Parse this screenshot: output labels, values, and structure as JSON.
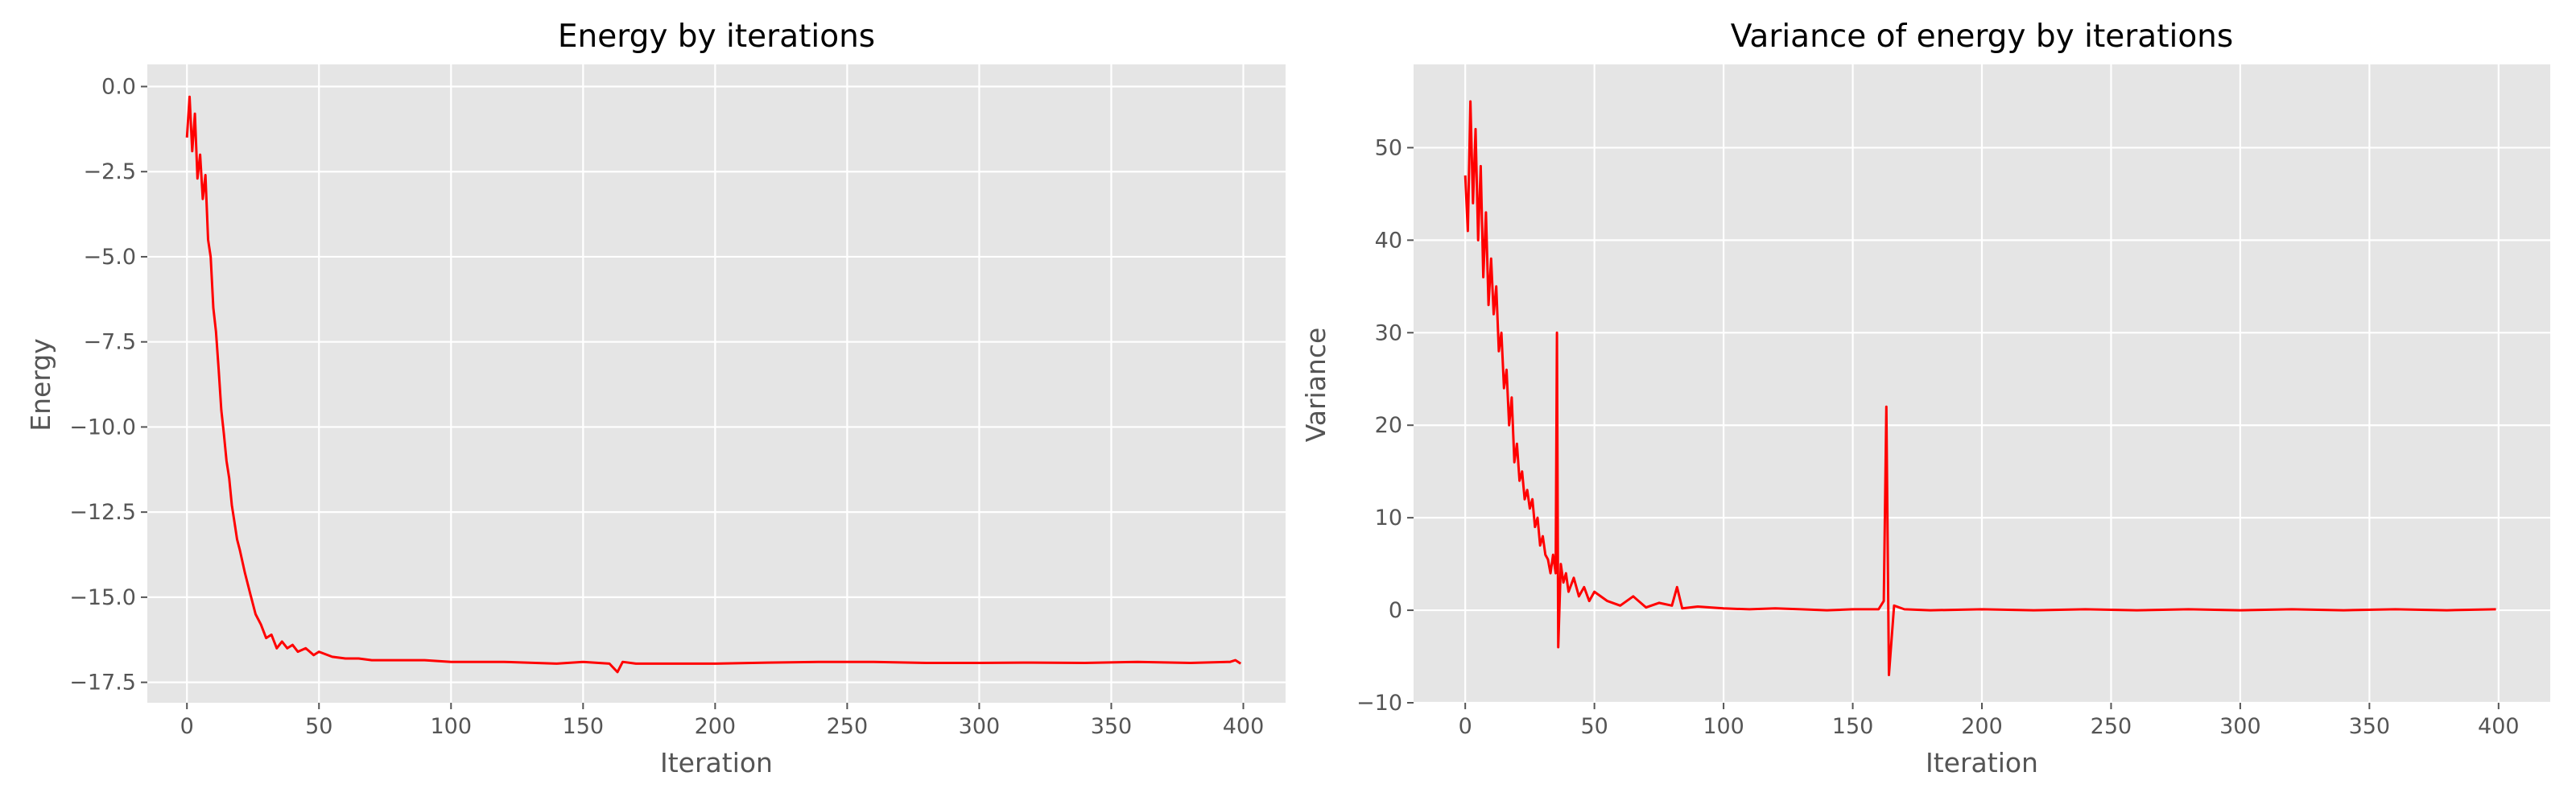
{
  "chart_data": [
    {
      "type": "line",
      "title": "Energy by iterations",
      "xlabel": "Iteration",
      "ylabel": "Energy",
      "xlim": [
        -15,
        416
      ],
      "ylim": [
        -18.1,
        0.65
      ],
      "xticks": [
        0,
        50,
        100,
        150,
        200,
        250,
        300,
        350,
        400
      ],
      "xtick_labels": [
        "0",
        "50",
        "100",
        "150",
        "200",
        "250",
        "300",
        "350",
        "400"
      ],
      "yticks": [
        0.0,
        -2.5,
        -5.0,
        -7.5,
        -10.0,
        -12.5,
        -15.0,
        -17.5
      ],
      "ytick_labels": [
        "0.0",
        "−2.5",
        "−5.0",
        "−7.5",
        "−10.0",
        "−12.5",
        "−15.0",
        "−17.5"
      ],
      "grid": true,
      "line_color": "#ff0000",
      "background": "#e5e5e5",
      "series": [
        {
          "x": [
            0,
            1,
            2,
            3,
            4,
            5,
            6,
            7,
            8,
            9,
            10,
            11,
            12,
            13,
            14,
            15,
            16,
            17,
            18,
            19,
            20,
            22,
            24,
            26,
            28,
            30,
            32,
            34,
            36,
            38,
            40,
            42,
            45,
            48,
            50,
            55,
            60,
            65,
            70,
            80,
            90,
            100,
            120,
            140,
            150,
            160,
            163,
            165,
            170,
            180,
            200,
            220,
            240,
            260,
            280,
            300,
            320,
            340,
            360,
            380,
            395,
            397,
            399
          ],
          "y": [
            -1.5,
            -0.3,
            -1.9,
            -0.8,
            -2.7,
            -2.0,
            -3.3,
            -2.6,
            -4.5,
            -5.0,
            -6.5,
            -7.2,
            -8.3,
            -9.5,
            -10.2,
            -11.0,
            -11.5,
            -12.3,
            -12.8,
            -13.3,
            -13.6,
            -14.3,
            -14.9,
            -15.5,
            -15.8,
            -16.2,
            -16.1,
            -16.5,
            -16.3,
            -16.5,
            -16.4,
            -16.6,
            -16.5,
            -16.7,
            -16.6,
            -16.75,
            -16.8,
            -16.8,
            -16.85,
            -16.85,
            -16.85,
            -16.9,
            -16.9,
            -16.95,
            -16.9,
            -16.95,
            -17.2,
            -16.9,
            -16.95,
            -16.95,
            -16.95,
            -16.92,
            -16.9,
            -16.9,
            -16.93,
            -16.93,
            -16.92,
            -16.93,
            -16.9,
            -16.93,
            -16.9,
            -16.85,
            -16.95
          ]
        }
      ]
    },
    {
      "type": "line",
      "title": "Variance of energy by iterations",
      "xlabel": "Iteration",
      "ylabel": "Variance",
      "xlim": [
        -20,
        420
      ],
      "ylim": [
        -10,
        59
      ],
      "xticks": [
        0,
        50,
        100,
        150,
        200,
        250,
        300,
        350,
        400
      ],
      "xtick_labels": [
        "0",
        "50",
        "100",
        "150",
        "200",
        "250",
        "300",
        "350",
        "400"
      ],
      "yticks": [
        -10,
        0,
        10,
        20,
        30,
        40,
        50
      ],
      "ytick_labels": [
        "−10",
        "0",
        "10",
        "20",
        "30",
        "40",
        "50"
      ],
      "grid": true,
      "line_color": "#ff0000",
      "background": "#e5e5e5",
      "series": [
        {
          "x": [
            0,
            1,
            2,
            3,
            4,
            5,
            6,
            7,
            8,
            9,
            10,
            11,
            12,
            13,
            14,
            15,
            16,
            17,
            18,
            19,
            20,
            21,
            22,
            23,
            24,
            25,
            26,
            27,
            28,
            29,
            30,
            31,
            32,
            33,
            34,
            35,
            35.5,
            36,
            37,
            38,
            39,
            40,
            42,
            44,
            46,
            48,
            50,
            55,
            60,
            65,
            70,
            75,
            80,
            82,
            84,
            90,
            100,
            110,
            120,
            130,
            140,
            150,
            160,
            162,
            163,
            164,
            166,
            170,
            180,
            200,
            220,
            240,
            260,
            280,
            300,
            320,
            340,
            360,
            380,
            399
          ],
          "y": [
            47,
            41,
            55,
            44,
            52,
            40,
            48,
            36,
            43,
            33,
            38,
            32,
            35,
            28,
            30,
            24,
            26,
            20,
            23,
            16,
            18,
            14,
            15,
            12,
            13,
            11,
            12,
            9,
            10,
            7,
            8,
            6,
            5.5,
            4,
            6,
            4,
            30,
            -4,
            5,
            3,
            4,
            2,
            3.5,
            1.5,
            2.5,
            1,
            2,
            1,
            0.5,
            1.5,
            0.3,
            0.8,
            0.5,
            2.5,
            0.2,
            0.4,
            0.2,
            0.1,
            0.2,
            0.1,
            0,
            0.1,
            0.1,
            1,
            22,
            -7,
            0.5,
            0.1,
            0,
            0.1,
            0,
            0.1,
            0,
            0.1,
            0,
            0.1,
            0,
            0.1,
            0,
            0.1
          ]
        }
      ]
    }
  ]
}
